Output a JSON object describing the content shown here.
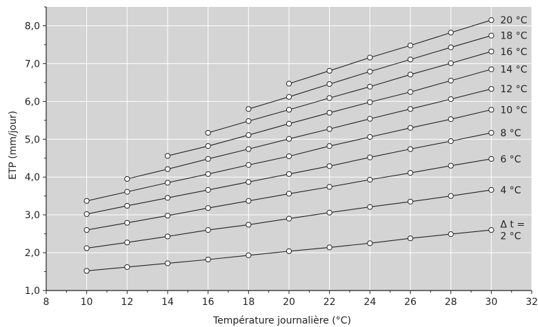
{
  "chart_data": {
    "type": "line",
    "title": "",
    "xlabel": "Température journalière (°C)",
    "ylabel": "ETP (mm/jour)",
    "xlim": [
      8,
      32
    ],
    "ylim": [
      1.0,
      8.5
    ],
    "x_ticks": [
      8,
      10,
      12,
      14,
      16,
      18,
      20,
      22,
      24,
      26,
      28,
      30,
      32
    ],
    "x_tick_labels": [
      "8",
      "10",
      "12",
      "14",
      "16",
      "18",
      "20",
      "22",
      "24",
      "26",
      "28",
      "30",
      "32"
    ],
    "y_ticks": [
      1.0,
      2.0,
      3.0,
      4.0,
      5.0,
      6.0,
      7.0,
      8.0
    ],
    "y_tick_labels": [
      "1,0",
      "2,0",
      "3,0",
      "4,0",
      "5,0",
      "6,0",
      "7,0",
      "8,0"
    ],
    "grid": true,
    "colors": {
      "background": "#d4d4d5",
      "grid": "#ffffff",
      "line": "#222222",
      "marker_fill": "#ffffff"
    },
    "series": [
      {
        "name": "Δ t = 2 °C",
        "label_lines": [
          "Δ t =",
          "2 °C"
        ],
        "x": [
          10,
          12,
          14,
          16,
          18,
          20,
          22,
          24,
          26,
          28,
          30
        ],
        "values": [
          1.52,
          1.62,
          1.72,
          1.82,
          1.93,
          2.04,
          2.14,
          2.25,
          2.38,
          2.49,
          2.6
        ]
      },
      {
        "name": "4 °C",
        "label_lines": [
          "4 °C"
        ],
        "x": [
          10,
          12,
          14,
          16,
          18,
          20,
          22,
          24,
          26,
          28,
          30
        ],
        "values": [
          2.12,
          2.27,
          2.43,
          2.6,
          2.74,
          2.9,
          3.06,
          3.21,
          3.35,
          3.5,
          3.66
        ]
      },
      {
        "name": "6 °C",
        "label_lines": [
          "6 °C"
        ],
        "x": [
          10,
          12,
          14,
          16,
          18,
          20,
          22,
          24,
          26,
          28,
          30
        ],
        "values": [
          2.6,
          2.79,
          2.98,
          3.18,
          3.37,
          3.56,
          3.74,
          3.93,
          4.11,
          4.3,
          4.48
        ]
      },
      {
        "name": "8 °C",
        "label_lines": [
          "8 °C"
        ],
        "x": [
          10,
          12,
          14,
          16,
          18,
          20,
          22,
          24,
          26,
          28,
          30
        ],
        "values": [
          3.02,
          3.24,
          3.45,
          3.66,
          3.87,
          4.08,
          4.29,
          4.52,
          4.74,
          4.95,
          5.17
        ]
      },
      {
        "name": "10 °C",
        "label_lines": [
          "10 °C"
        ],
        "x": [
          10,
          12,
          14,
          16,
          18,
          20,
          22,
          24,
          26,
          28,
          30
        ],
        "values": [
          3.37,
          3.61,
          3.85,
          4.08,
          4.32,
          4.55,
          4.82,
          5.06,
          5.3,
          5.53,
          5.78
        ]
      },
      {
        "name": "12 °C",
        "label_lines": [
          "12 °C"
        ],
        "x": [
          12,
          14,
          16,
          18,
          20,
          22,
          24,
          26,
          28,
          30
        ],
        "values": [
          3.95,
          4.21,
          4.48,
          4.74,
          5.01,
          5.27,
          5.54,
          5.8,
          6.06,
          6.33
        ]
      },
      {
        "name": "14 °C",
        "label_lines": [
          "14 °C"
        ],
        "x": [
          14,
          16,
          18,
          20,
          22,
          24,
          26,
          28,
          30
        ],
        "values": [
          4.56,
          4.82,
          5.11,
          5.41,
          5.7,
          5.98,
          6.25,
          6.55,
          6.85
        ]
      },
      {
        "name": "16 °C",
        "label_lines": [
          "16 °C"
        ],
        "x": [
          16,
          18,
          20,
          22,
          24,
          26,
          28,
          30
        ],
        "values": [
          5.17,
          5.48,
          5.78,
          6.09,
          6.39,
          6.71,
          7.01,
          7.32
        ]
      },
      {
        "name": "18 °C",
        "label_lines": [
          "18 °C"
        ],
        "x": [
          18,
          20,
          22,
          24,
          26,
          28,
          30
        ],
        "values": [
          5.8,
          6.12,
          6.46,
          6.79,
          7.11,
          7.43,
          7.74
        ]
      },
      {
        "name": "20 °C",
        "label_lines": [
          "20 °C"
        ],
        "x": [
          20,
          22,
          24,
          26,
          28,
          30
        ],
        "values": [
          6.47,
          6.81,
          7.16,
          7.48,
          7.82,
          8.15
        ]
      }
    ]
  }
}
